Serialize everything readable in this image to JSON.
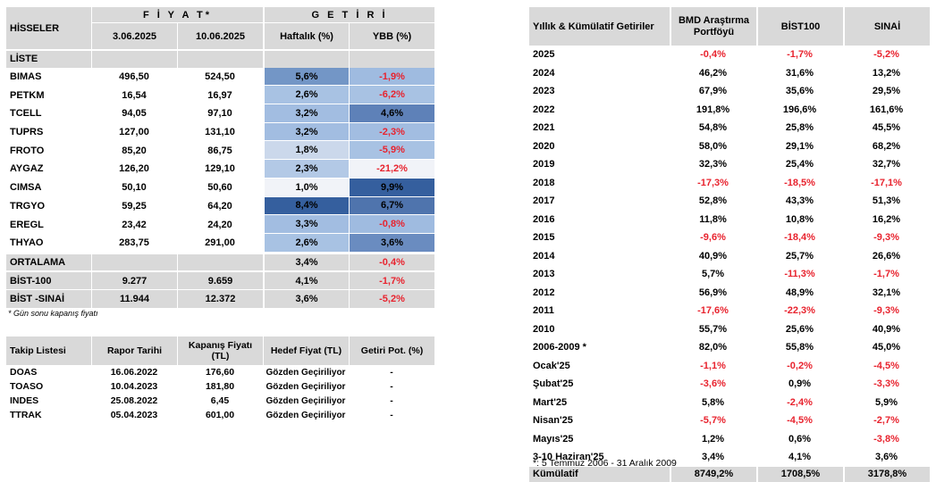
{
  "stocks": {
    "header": {
      "title": "HİSSELER",
      "price": "F İ Y A T*",
      "return": "G E T İ R İ",
      "date1": "3.06.2025",
      "date2": "10.06.2025",
      "weekly": "Haftalık (%)",
      "ytd": "YBB (%)"
    },
    "list_label": "LİSTE",
    "rows": [
      {
        "name": "BIMAS",
        "p1": "496,50",
        "p2": "524,50",
        "w": "5,6%",
        "y": "-1,9%",
        "wc": "#7396c6",
        "yc": "#9fbbe0",
        "yneg": true
      },
      {
        "name": "PETKM",
        "p1": "16,54",
        "p2": "16,97",
        "w": "2,6%",
        "y": "-6,2%",
        "wc": "#a8c2e3",
        "yc": "#a8c2e3",
        "yneg": true
      },
      {
        "name": "TCELL",
        "p1": "94,05",
        "p2": "97,10",
        "w": "3,2%",
        "y": "4,6%",
        "wc": "#a2bde1",
        "yc": "#5e81b8",
        "yneg": false
      },
      {
        "name": "TUPRS",
        "p1": "127,00",
        "p2": "131,10",
        "w": "3,2%",
        "y": "-2,3%",
        "wc": "#a2bde1",
        "yc": "#a2bde1",
        "yneg": true
      },
      {
        "name": "FROTO",
        "p1": "85,20",
        "p2": "86,75",
        "w": "1,8%",
        "y": "-5,9%",
        "wc": "#cbd8eb",
        "yc": "#a8c2e3",
        "yneg": true
      },
      {
        "name": "AYGAZ",
        "p1": "126,20",
        "p2": "129,10",
        "w": "2,3%",
        "y": "-21,2%",
        "wc": "#b3c9e6",
        "yc": "#f1f3f8",
        "yneg": true
      },
      {
        "name": "CIMSA",
        "p1": "50,10",
        "p2": "50,60",
        "w": "1,0%",
        "y": "9,9%",
        "wc": "#f1f3f8",
        "yc": "#355f9e",
        "yneg": false
      },
      {
        "name": "TRGYO",
        "p1": "59,25",
        "p2": "64,20",
        "w": "8,4%",
        "y": "6,7%",
        "wc": "#355f9e",
        "yc": "#4f74ad",
        "yneg": false
      },
      {
        "name": "EREGL",
        "p1": "23,42",
        "p2": "24,20",
        "w": "3,3%",
        "y": "-0,8%",
        "wc": "#a2bde1",
        "yc": "#9fbbe0",
        "yneg": true
      },
      {
        "name": "THYAO",
        "p1": "283,75",
        "p2": "291,00",
        "w": "2,6%",
        "y": "3,6%",
        "wc": "#a8c2e3",
        "yc": "#6a8cc0",
        "yneg": false
      }
    ],
    "avg": {
      "name": "ORTALAMA",
      "w": "3,4%",
      "y": "-0,4%"
    },
    "bist100": {
      "name": "BİST-100",
      "p1": "9.277",
      "p2": "9.659",
      "w": "4,1%",
      "y": "-1,7%"
    },
    "bistsinai": {
      "name": "BİST -SINAİ",
      "p1": "11.944",
      "p2": "12.372",
      "w": "3,6%",
      "y": "-5,2%"
    },
    "note": "* Gün sonu kapanış fiyatı"
  },
  "watch": {
    "header": {
      "name": "Takip Listesi",
      "date": "Rapor Tarihi",
      "close": "Kapanış Fiyatı (TL)",
      "target": "Hedef Fiyat (TL)",
      "pot": "Getiri Pot. (%)"
    },
    "rows": [
      {
        "name": "DOAS",
        "date": "16.06.2022",
        "close": "176,60",
        "target": "Gözden Geçiriliyor",
        "pot": "-"
      },
      {
        "name": "TOASO",
        "date": "10.04.2023",
        "close": "181,80",
        "target": "Gözden Geçiriliyor",
        "pot": "-"
      },
      {
        "name": "INDES",
        "date": "25.08.2022",
        "close": "6,45",
        "target": "Gözden Geçiriliyor",
        "pot": "-"
      },
      {
        "name": "TTRAK",
        "date": "05.04.2023",
        "close": "601,00",
        "target": "Gözden Geçiriliyor",
        "pot": "-"
      }
    ]
  },
  "returns": {
    "header": {
      "title": "Yıllık & Kümülatif Getiriler",
      "bmd": "BMD Araştırma Portföyü",
      "bist": "BİST100",
      "sinai": "SINAİ"
    },
    "rows": [
      {
        "label": "2025",
        "a": "-0,4%",
        "b": "-1,7%",
        "c": "-5,2%"
      },
      {
        "label": "2024",
        "a": "46,2%",
        "b": "31,6%",
        "c": "13,2%"
      },
      {
        "label": "2023",
        "a": "67,9%",
        "b": "35,6%",
        "c": "29,5%"
      },
      {
        "label": "2022",
        "a": "191,8%",
        "b": "196,6%",
        "c": "161,6%"
      },
      {
        "label": "2021",
        "a": "54,8%",
        "b": "25,8%",
        "c": "45,5%"
      },
      {
        "label": "2020",
        "a": "58,0%",
        "b": "29,1%",
        "c": "68,2%"
      },
      {
        "label": "2019",
        "a": "32,3%",
        "b": "25,4%",
        "c": "32,7%"
      },
      {
        "label": "2018",
        "a": "-17,3%",
        "b": "-18,5%",
        "c": "-17,1%"
      },
      {
        "label": "2017",
        "a": "52,8%",
        "b": "43,3%",
        "c": "51,3%"
      },
      {
        "label": "2016",
        "a": "11,8%",
        "b": "10,8%",
        "c": "16,2%"
      },
      {
        "label": "2015",
        "a": "-9,6%",
        "b": "-18,4%",
        "c": "-9,3%"
      },
      {
        "label": "2014",
        "a": "40,9%",
        "b": "25,7%",
        "c": "26,6%"
      },
      {
        "label": "2013",
        "a": "5,7%",
        "b": "-11,3%",
        "c": "-1,7%"
      },
      {
        "label": "2012",
        "a": "56,9%",
        "b": "48,9%",
        "c": "32,1%"
      },
      {
        "label": "2011",
        "a": "-17,6%",
        "b": "-22,3%",
        "c": "-9,3%"
      },
      {
        "label": "2010",
        "a": "55,7%",
        "b": "25,6%",
        "c": "40,9%"
      },
      {
        "label": "2006-2009 *",
        "a": "82,0%",
        "b": "55,8%",
        "c": "45,0%"
      },
      {
        "label": "Ocak'25",
        "a": "-1,1%",
        "b": "-0,2%",
        "c": "-4,5%"
      },
      {
        "label": "Şubat'25",
        "a": "-3,6%",
        "b": "0,9%",
        "c": "-3,3%"
      },
      {
        "label": "Mart'25",
        "a": "5,8%",
        "b": "-2,4%",
        "c": "5,9%"
      },
      {
        "label": "Nisan'25",
        "a": "-5,7%",
        "b": "-4,5%",
        "c": "-2,7%"
      },
      {
        "label": "Mayıs'25",
        "a": "1,2%",
        "b": "0,6%",
        "c": "-3,8%"
      },
      {
        "label": "3-10 Haziran'25",
        "a": "3,4%",
        "b": "4,1%",
        "c": "3,6%"
      }
    ],
    "total": {
      "label": "Kümülatif",
      "a": "8749,2%",
      "b": "1708,5%",
      "c": "3178,8%"
    },
    "note": "*: 5 Temmuz 2006 - 31 Aralık 2009"
  },
  "colors": {
    "header_gray": "#d9d9d9",
    "negative": "#e8232e",
    "heat_dark": "#355f9e",
    "heat_light": "#f1f3f8"
  }
}
